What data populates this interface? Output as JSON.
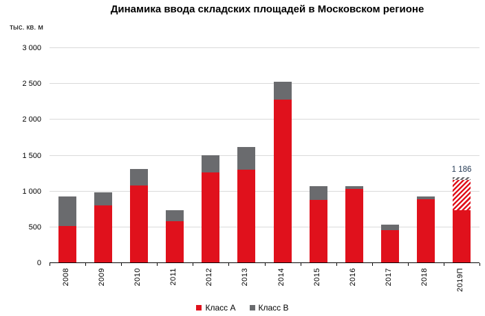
{
  "chart_data": {
    "type": "stacked-bar",
    "title": "Динамика ввода складских площадей в Московском регионе",
    "unit_label": "тыс. кв. м",
    "categories": [
      "2008",
      "2009",
      "2010",
      "2011",
      "2012",
      "2013",
      "2014",
      "2015",
      "2016",
      "2017",
      "2018",
      "2019П"
    ],
    "series": [
      {
        "name": "Класс А",
        "color": "#e0111c",
        "values": [
          510,
          800,
          1070,
          580,
          1260,
          1290,
          2270,
          870,
          1030,
          450,
          880,
          1155
        ]
      },
      {
        "name": "Класс В",
        "color": "#6a6b6e",
        "values": [
          410,
          180,
          230,
          150,
          240,
          320,
          250,
          190,
          35,
          80,
          40,
          31
        ]
      }
    ],
    "forecast": {
      "category_index": 11,
      "solid_class_a_value": 730,
      "hatched": true,
      "total_value": 1186,
      "total_label": "1 186",
      "label_color": "#1f3550"
    },
    "y_axis": {
      "min": 0,
      "max": 3000,
      "tick_step": 500,
      "tick_labels": [
        "0",
        "500",
        "1 000",
        "1 500",
        "2 000",
        "2 500",
        "3 000"
      ]
    },
    "grid_color": "#d9d9d9",
    "axis_color": "#000000",
    "hatch_background": "#ffffff",
    "legend_position": "bottom-center"
  }
}
